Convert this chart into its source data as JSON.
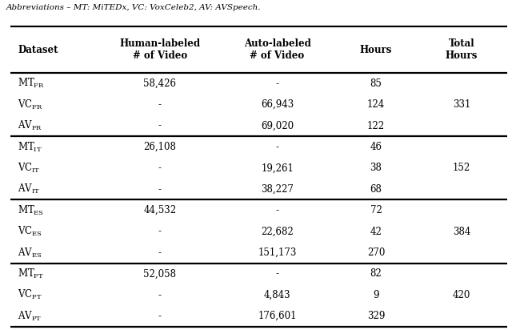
{
  "caption": "Abbreviations – MT: MiTEDx, VC: VoxCeleb2, AV: AVSpeech.",
  "col_headers": [
    "Dataset",
    "Human-labeled\n# of Video",
    "Auto-labeled\n# of Video",
    "Hours",
    "Total\nHours"
  ],
  "rows": [
    [
      "MT$_{\\mathregular{FR}}$",
      "58,426",
      "-",
      "85",
      ""
    ],
    [
      "VC$_{\\mathregular{FR}}$",
      "-",
      "66,943",
      "124",
      "331"
    ],
    [
      "AV$_{\\mathregular{FR}}$",
      "-",
      "69,020",
      "122",
      ""
    ],
    [
      "MT$_{\\mathregular{IT}}$",
      "26,108",
      "-",
      "46",
      ""
    ],
    [
      "VC$_{\\mathregular{IT}}$",
      "-",
      "19,261",
      "38",
      "152"
    ],
    [
      "AV$_{\\mathregular{IT}}$",
      "-",
      "38,227",
      "68",
      ""
    ],
    [
      "MT$_{\\mathregular{ES}}$",
      "44,532",
      "-",
      "72",
      ""
    ],
    [
      "VC$_{\\mathregular{ES}}$",
      "-",
      "22,682",
      "42",
      "384"
    ],
    [
      "AV$_{\\mathregular{ES}}$",
      "-",
      "151,173",
      "270",
      ""
    ],
    [
      "MT$_{\\mathregular{PT}}$",
      "52,058",
      "-",
      "82",
      ""
    ],
    [
      "VC$_{\\mathregular{PT}}$",
      "-",
      "4,843",
      "9",
      "420"
    ],
    [
      "AV$_{\\mathregular{PT}}$",
      "-",
      "176,601",
      "329",
      ""
    ]
  ],
  "group_dividers": [
    3,
    6,
    9
  ],
  "background_color": "#ffffff",
  "text_color": "#000000",
  "line_color": "#000000",
  "caption_fontsize": 7.5,
  "header_fontsize": 8.5,
  "body_fontsize": 8.5,
  "lw_thick": 1.6
}
